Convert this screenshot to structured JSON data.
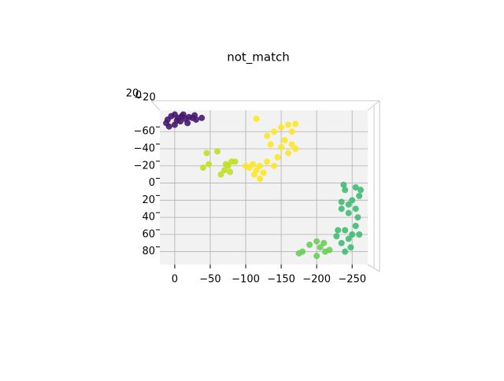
{
  "chart_data": {
    "type": "scatter",
    "title": "not_match",
    "xlim": [
      21,
      -272
    ],
    "ylim": [
      -85,
      95
    ],
    "xticks": [
      0,
      {
        "value": -50,
        "label": "−50"
      },
      {
        "value": -100,
        "label": "−100"
      },
      {
        "value": -150,
        "label": "−150"
      },
      {
        "value": -200,
        "label": "−200"
      },
      {
        "value": -250,
        "label": "−250"
      }
    ],
    "yticks": [
      {
        "value": -60,
        "label": "−60"
      },
      {
        "value": -40,
        "label": "−40"
      },
      {
        "value": -20,
        "label": "−20"
      },
      0,
      20,
      40,
      60,
      80
    ],
    "zticks": [
      20,
      0,
      {
        "value": -20,
        "label": "−20"
      }
    ],
    "grid": true,
    "series": [
      {
        "color": "#46186e",
        "x": [
          0,
          5,
          -5,
          10,
          -10,
          -15,
          -20,
          -25,
          -30,
          -38,
          12,
          0,
          -8,
          -18,
          8,
          -3,
          -12,
          -28
        ],
        "y": [
          -80,
          -78,
          -76,
          -74,
          -78,
          -75,
          -77,
          -76,
          -74,
          -76,
          -70,
          -68,
          -72,
          -70,
          -66,
          -73,
          -80,
          -79
        ]
      },
      {
        "color": "#fde725",
        "x": [
          -115,
          -160,
          -170,
          -150,
          -165,
          -130,
          -140,
          -155,
          -165,
          -170,
          -150,
          -135,
          -145,
          -160,
          -140,
          -130,
          -110,
          -105,
          -115,
          -120,
          -100,
          -112,
          -120,
          -125
        ],
        "y": [
          -75,
          -68,
          -69,
          -65,
          -60,
          -55,
          -60,
          -50,
          -45,
          -40,
          -42,
          -45,
          -30,
          -35,
          -20,
          -25,
          -22,
          -18,
          -15,
          -20,
          -20,
          -10,
          -5,
          -12
        ]
      },
      {
        "color": "#c2df23",
        "x": [
          -45,
          -60,
          -80,
          -85,
          -75,
          -70,
          -78,
          -65,
          -40,
          -48,
          -72
        ],
        "y": [
          -35,
          -37,
          -25,
          -25,
          -20,
          -15,
          -13,
          -10,
          -18,
          -22,
          -22
        ]
      },
      {
        "color": "#3fbc73",
        "x": [
          -238,
          -240,
          -255,
          -262,
          -260,
          -235,
          -245,
          -250,
          -255,
          -258,
          -245,
          -235,
          -240,
          -230,
          -250,
          -245,
          -260,
          -235,
          -248,
          -240,
          -228,
          -255
        ],
        "y": [
          2,
          8,
          5,
          8,
          15,
          22,
          25,
          20,
          30,
          40,
          35,
          30,
          55,
          55,
          60,
          65,
          60,
          70,
          75,
          80,
          62,
          50
        ]
      },
      {
        "color": "#6ccd5a",
        "x": [
          -200,
          -210,
          -205,
          -212,
          -200,
          -218,
          -190,
          -180,
          -175
        ],
        "y": [
          68,
          70,
          75,
          80,
          85,
          78,
          72,
          80,
          82
        ]
      }
    ]
  }
}
